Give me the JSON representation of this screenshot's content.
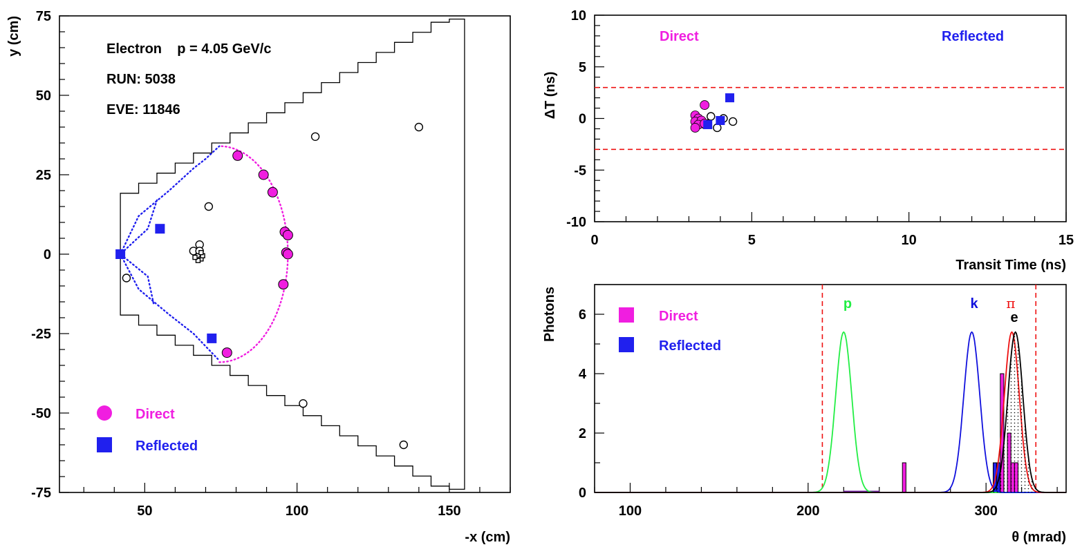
{
  "colors": {
    "direct": "#f01ee0",
    "reflected": "#2020ee",
    "electron_curve": "#000000",
    "pion_curve": "#ee1010",
    "kaon_curve": "#1010dd",
    "proton_curve": "#22ee44",
    "cut_lines": "#ee1010"
  },
  "chart_data": [
    {
      "id": "hit-map",
      "type": "scatter",
      "xlabel": "-x (cm)",
      "ylabel": "y (cm)",
      "xlim": [
        22,
        170
      ],
      "ylim": [
        -75,
        75
      ],
      "xticks": [
        50,
        100,
        150
      ],
      "yticks": [
        -75,
        -50,
        -25,
        0,
        25,
        50,
        75
      ],
      "info": [
        "Electron    p = 4.05 GeV/c",
        "RUN: 5038",
        "EVE: 11846"
      ],
      "legend": [
        "Direct",
        "Reflected"
      ],
      "legend_position": "bottom-left",
      "direct_hits": [
        [
          80.5,
          31
        ],
        [
          89,
          25
        ],
        [
          92,
          19.5
        ],
        [
          96,
          7
        ],
        [
          97,
          6
        ],
        [
          96.5,
          0.5
        ],
        [
          97,
          0
        ],
        [
          95.5,
          -9.5
        ],
        [
          77,
          -31
        ]
      ],
      "reflected_hits": [
        [
          42,
          0
        ],
        [
          55,
          8
        ],
        [
          72,
          -26.5
        ]
      ],
      "background_hits": [
        [
          71,
          15
        ],
        [
          106,
          37
        ],
        [
          140,
          40
        ],
        [
          44,
          -7.5
        ],
        [
          66,
          1
        ],
        [
          68,
          3
        ],
        [
          68,
          1
        ],
        [
          102,
          -47
        ],
        [
          135,
          -60
        ]
      ],
      "ring_direct_arc": {
        "xmin": 74.5,
        "xmax": 97,
        "ymax": 34
      },
      "ring_reflected_outer": [
        [
          42,
          0
        ],
        [
          48,
          12
        ],
        [
          58,
          20
        ],
        [
          66,
          27
        ],
        [
          70,
          30
        ],
        [
          74.5,
          34
        ]
      ],
      "ring_reflected_outer_lower": [
        [
          42,
          0
        ],
        [
          48,
          -11
        ],
        [
          58,
          -19
        ],
        [
          66,
          -25
        ],
        [
          70,
          -29
        ],
        [
          74,
          -33
        ]
      ],
      "ring_reflected_inner": [
        [
          54,
          17
        ],
        [
          51,
          8
        ],
        [
          42,
          0
        ],
        [
          51,
          -7
        ],
        [
          53,
          -16
        ]
      ]
    },
    {
      "id": "timing",
      "type": "scatter",
      "xlabel": "Transit Time (ns)",
      "ylabel": "ΔT (ns)",
      "xlim": [
        0,
        15
      ],
      "ylim": [
        -10,
        10
      ],
      "xticks": [
        0,
        5,
        10,
        15
      ],
      "yticks": [
        -10,
        -5,
        0,
        5,
        10
      ],
      "cut_lines": [
        3,
        -3
      ],
      "labels": [
        "Direct",
        "Reflected"
      ],
      "direct": [
        [
          3.5,
          1.3
        ],
        [
          3.2,
          0.3
        ],
        [
          3.3,
          0.0
        ],
        [
          3.2,
          -0.3
        ],
        [
          3.4,
          -0.2
        ],
        [
          3.3,
          -0.6
        ],
        [
          3.2,
          -0.9
        ],
        [
          3.5,
          -0.5
        ]
      ],
      "reflected": [
        [
          4.3,
          2.0
        ],
        [
          4.0,
          -0.2
        ],
        [
          3.6,
          -0.6
        ]
      ],
      "background": [
        [
          3.7,
          0.2
        ],
        [
          3.6,
          -0.5
        ],
        [
          3.9,
          -0.9
        ],
        [
          4.1,
          0.0
        ],
        [
          4.4,
          -0.3
        ],
        [
          3.5,
          -0.6
        ]
      ]
    },
    {
      "id": "theta",
      "type": "bar",
      "xlabel": "θ (mrad)",
      "ylabel": "Photons",
      "xlim": [
        80,
        345
      ],
      "ylim": [
        0,
        7
      ],
      "xticks": [
        100,
        200,
        300
      ],
      "yticks": [
        0,
        2,
        4,
        6
      ],
      "cut_lines": [
        208,
        328
      ],
      "legend": [
        "Direct",
        "Reflected"
      ],
      "legend_position": "top-left",
      "curve_labels": {
        "p": "p",
        "k": "k",
        "pi": "π",
        "e": "e"
      },
      "curves": [
        {
          "label": "p",
          "mean": 220,
          "sigma": 4.5,
          "amp": 5.4
        },
        {
          "label": "k",
          "mean": 292,
          "sigma": 4.5,
          "amp": 5.4
        },
        {
          "label": "π",
          "mean": 314.5,
          "sigma": 4.2,
          "amp": 5.4
        },
        {
          "label": "e",
          "mean": 316.5,
          "sigma": 4.2,
          "amp": 5.4
        }
      ],
      "direct_bins": [
        [
          253,
          255,
          1
        ],
        [
          308,
          310,
          4
        ],
        [
          312,
          314,
          2
        ],
        [
          314,
          316,
          1
        ],
        [
          316,
          318,
          1
        ]
      ],
      "reflected_bins": [
        [
          304,
          306,
          1
        ],
        [
          306,
          308,
          1
        ],
        [
          308,
          310,
          1
        ]
      ],
      "direct_flat_bin": [
        220,
        240
      ]
    }
  ]
}
